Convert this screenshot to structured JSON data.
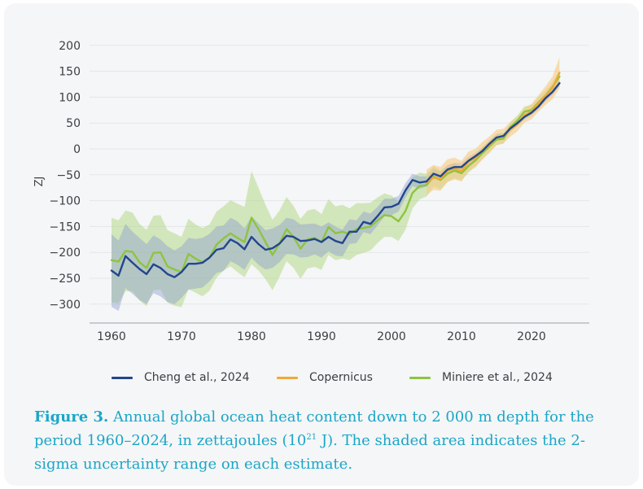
{
  "chart_data": {
    "type": "line",
    "title": "",
    "xlabel": "",
    "ylabel": "ZJ",
    "xlim": [
      1957.5,
      2027
    ],
    "ylim": [
      -330,
      200
    ],
    "x_ticks": [
      "1960",
      "1970",
      "1980",
      "1990",
      "2000",
      "2010",
      "2020"
    ],
    "y_ticks": [
      "200",
      "150",
      "100",
      "50",
      "0",
      "−50",
      "−100",
      "−150",
      "−200",
      "−250",
      "−300"
    ],
    "series": [
      {
        "name": "Cheng et al., 2024",
        "color": "#23468c",
        "band_color": "#8f9fcf",
        "x": [
          1960,
          1961,
          1962,
          1963,
          1964,
          1965,
          1966,
          1967,
          1968,
          1969,
          1970,
          1971,
          1972,
          1973,
          1974,
          1975,
          1976,
          1977,
          1978,
          1979,
          1980,
          1981,
          1982,
          1983,
          1984,
          1985,
          1986,
          1987,
          1988,
          1989,
          1990,
          1991,
          1992,
          1993,
          1994,
          1995,
          1996,
          1997,
          1998,
          1999,
          2000,
          2001,
          2002,
          2003,
          2004,
          2005,
          2006,
          2007,
          2008,
          2009,
          2010,
          2011,
          2012,
          2013,
          2014,
          2015,
          2016,
          2017,
          2018,
          2019,
          2020,
          2021,
          2022,
          2023,
          2024
        ],
        "y": [
          -235,
          -245,
          -207,
          -220,
          -232,
          -242,
          -223,
          -230,
          -242,
          -248,
          -238,
          -222,
          -222,
          -220,
          -210,
          -195,
          -192,
          -175,
          -182,
          -194,
          -170,
          -184,
          -195,
          -192,
          -183,
          -168,
          -170,
          -178,
          -177,
          -174,
          -180,
          -170,
          -178,
          -182,
          -160,
          -160,
          -141,
          -145,
          -130,
          -113,
          -112,
          -106,
          -80,
          -60,
          -65,
          -63,
          -48,
          -53,
          -40,
          -35,
          -35,
          -23,
          -14,
          -4,
          10,
          22,
          25,
          40,
          50,
          62,
          70,
          82,
          98,
          110,
          127
        ],
        "uncertainty": [
          70,
          68,
          62,
          60,
          60,
          58,
          56,
          55,
          54,
          52,
          50,
          50,
          48,
          48,
          46,
          45,
          44,
          42,
          42,
          40,
          40,
          40,
          38,
          38,
          36,
          35,
          34,
          32,
          32,
          30,
          30,
          28,
          28,
          26,
          24,
          22,
          20,
          20,
          18,
          17,
          16,
          15,
          14,
          12,
          12,
          10,
          10,
          9,
          9,
          8,
          8,
          8,
          7,
          7,
          7,
          7,
          6,
          6,
          6,
          6,
          6,
          6,
          6,
          6,
          6
        ]
      },
      {
        "name": "Copernicus",
        "color": "#f2a838",
        "band_color": "#f7cb80",
        "x": [
          2005,
          2006,
          2007,
          2008,
          2009,
          2010,
          2011,
          2012,
          2013,
          2014,
          2015,
          2016,
          2017,
          2018,
          2019,
          2020,
          2021,
          2022,
          2023,
          2024
        ],
        "y": [
          -65,
          -55,
          -58,
          -42,
          -38,
          -43,
          -24,
          -18,
          -3,
          8,
          22,
          25,
          38,
          48,
          65,
          72,
          88,
          103,
          118,
          147
        ],
        "uncertainty": [
          25,
          24,
          23,
          22,
          21,
          20,
          19,
          18,
          17,
          16,
          15,
          14,
          14,
          14,
          14,
          15,
          16,
          18,
          22,
          30
        ]
      },
      {
        "name": "Miniere et al., 2024",
        "color": "#8ec43f",
        "band_color": "#b5d98a",
        "x": [
          1960,
          1961,
          1962,
          1963,
          1964,
          1965,
          1966,
          1967,
          1968,
          1969,
          1970,
          1971,
          1972,
          1973,
          1974,
          1975,
          1976,
          1977,
          1978,
          1979,
          1980,
          1981,
          1982,
          1983,
          1984,
          1985,
          1986,
          1987,
          1988,
          1989,
          1990,
          1991,
          1992,
          1993,
          1994,
          1995,
          1996,
          1997,
          1998,
          1999,
          2000,
          2001,
          2002,
          2003,
          2004,
          2005,
          2006,
          2007,
          2008,
          2009,
          2010,
          2011,
          2012,
          2013,
          2014,
          2015,
          2016,
          2017,
          2018,
          2019,
          2020,
          2021,
          2022,
          2023,
          2024
        ],
        "y": [
          -215,
          -218,
          -197,
          -199,
          -219,
          -230,
          -201,
          -200,
          -227,
          -233,
          -238,
          -203,
          -212,
          -219,
          -210,
          -185,
          -173,
          -163,
          -172,
          -180,
          -133,
          -155,
          -180,
          -205,
          -183,
          -155,
          -170,
          -193,
          -175,
          -172,
          -180,
          -151,
          -163,
          -160,
          -165,
          -155,
          -153,
          -150,
          -138,
          -128,
          -130,
          -140,
          -120,
          -85,
          -72,
          -70,
          -53,
          -60,
          -48,
          -42,
          -47,
          -33,
          -22,
          -8,
          5,
          18,
          20,
          42,
          55,
          72,
          75,
          90,
          103,
          120,
          140
        ],
        "uncertainty": [
          82,
          80,
          78,
          76,
          74,
          74,
          72,
          72,
          70,
          70,
          68,
          68,
          66,
          66,
          64,
          64,
          62,
          64,
          66,
          68,
          90,
          80,
          72,
          68,
          64,
          62,
          60,
          58,
          56,
          56,
          54,
          54,
          52,
          52,
          50,
          50,
          48,
          46,
          44,
          42,
          40,
          38,
          36,
          30,
          26,
          22,
          20,
          18,
          16,
          15,
          14,
          13,
          12,
          12,
          11,
          11,
          10,
          10,
          10,
          10,
          10,
          10,
          10,
          10,
          12
        ]
      }
    ]
  },
  "legend": {
    "items": [
      {
        "label": "Cheng et al., 2024",
        "color": "#23468c"
      },
      {
        "label": "Copernicus",
        "color": "#f2a838"
      },
      {
        "label": "Miniere et al., 2024",
        "color": "#8ec43f"
      }
    ]
  },
  "caption": {
    "figure_label": "Figure 3.",
    "text_part1": " Annual global ocean heat content down to 2 000 m depth for the period 1960–2024, in zettajoules (10",
    "superscript": "21",
    "text_part2": " J). The shaded area indicates the 2-sigma uncertainty range on each estimate."
  }
}
